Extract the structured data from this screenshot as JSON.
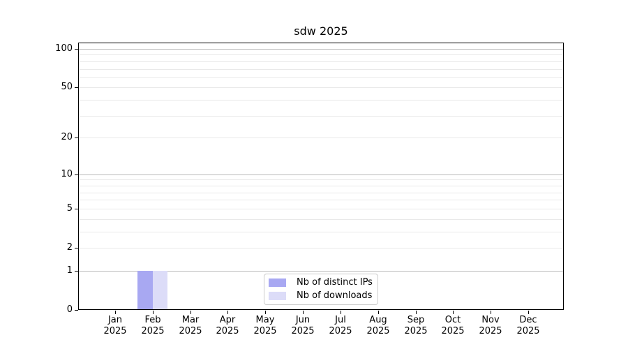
{
  "figure": {
    "background": "#ffffff"
  },
  "chart_data": {
    "type": "bar",
    "title": "sdw 2025",
    "categories": [
      {
        "month": "Jan",
        "year": "2025"
      },
      {
        "month": "Feb",
        "year": "2025"
      },
      {
        "month": "Mar",
        "year": "2025"
      },
      {
        "month": "Apr",
        "year": "2025"
      },
      {
        "month": "May",
        "year": "2025"
      },
      {
        "month": "Jun",
        "year": "2025"
      },
      {
        "month": "Jul",
        "year": "2025"
      },
      {
        "month": "Aug",
        "year": "2025"
      },
      {
        "month": "Sep",
        "year": "2025"
      },
      {
        "month": "Oct",
        "year": "2025"
      },
      {
        "month": "Nov",
        "year": "2025"
      },
      {
        "month": "Dec",
        "year": "2025"
      }
    ],
    "series": [
      {
        "name": "Nb of distinct IPs",
        "color": "#a8a8f2",
        "values": [
          0,
          1,
          0,
          0,
          0,
          0,
          0,
          0,
          0,
          0,
          0,
          0
        ]
      },
      {
        "name": "Nb of downloads",
        "color": "#dcdcf8",
        "values": [
          0,
          1,
          0,
          0,
          0,
          0,
          0,
          0,
          0,
          0,
          0,
          0
        ]
      }
    ],
    "y_axis": {
      "scale": "log1p",
      "tick_labels": [
        0,
        1,
        2,
        5,
        10,
        20,
        50,
        100
      ],
      "major_gridlines": [
        1,
        10,
        100
      ],
      "minor_gridlines": [
        2,
        3,
        4,
        5,
        6,
        7,
        8,
        9,
        20,
        30,
        40,
        50,
        60,
        70,
        80,
        90
      ],
      "ylim": [
        0,
        112
      ]
    },
    "xlabel": "",
    "ylabel": "",
    "grid": true,
    "legend_position": "lower center"
  },
  "colors": {
    "major_grid": "#b9b9b9",
    "minor_grid": "#e9e9e9",
    "spine": "#000000",
    "legend_border": "#cccccc"
  }
}
